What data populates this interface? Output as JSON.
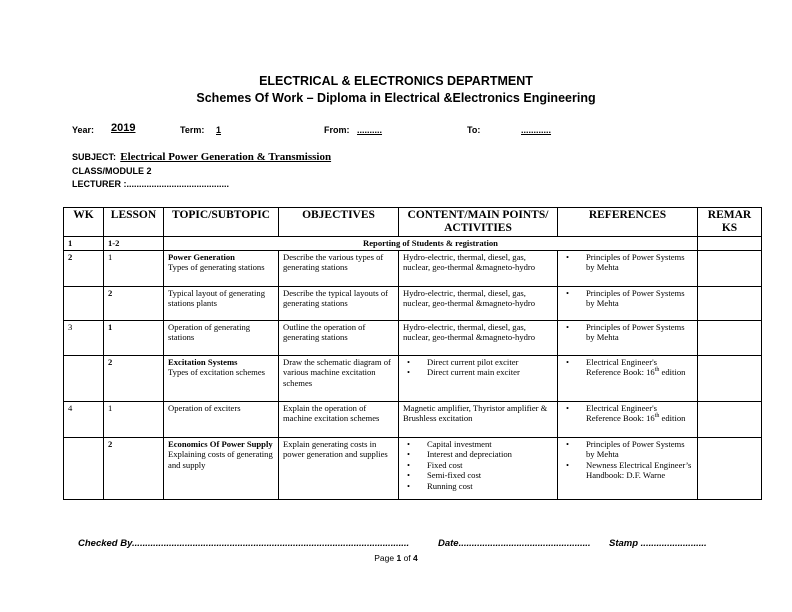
{
  "header": {
    "department": "ELECTRICAL & ELECTRONICS DEPARTMENT",
    "subtitle": "Schemes Of Work – Diploma in Electrical &Electronics Engineering"
  },
  "meta": {
    "year_label": "Year:",
    "year": "2019",
    "term_label": "Term:",
    "term": "1",
    "from_label": "From:",
    "from": "..........",
    "to_label": "To:",
    "to": "............",
    "subject_label": "SUBJECT:",
    "subject": "Electrical Power Generation & Transmission",
    "class": "CLASS/MODULE 2",
    "lecturer": "LECTURER :........................................."
  },
  "table": {
    "headers": [
      "WK",
      "LESSON",
      "TOPIC/SUBTOPIC",
      "OBJECTIVES",
      "CONTENT/MAIN POINTS/ ACTIVITIES",
      "REFERENCES",
      "REMAR KS"
    ],
    "rows": [
      {
        "wk": "1",
        "lesson": "1-2",
        "merged": "Reporting of Students & registration"
      },
      {
        "wk": "2",
        "lesson": "1",
        "topic_bold": "Power Generation",
        "topic": "Types of generating stations",
        "objectives": "Describe the various types of generating stations",
        "content": "Hydro-electric, thermal, diesel, gas, nuclear, geo-thermal &magneto-hydro",
        "references": [
          "Principles of Power Systems by Mehta"
        ]
      },
      {
        "wk": "",
        "lesson": "2",
        "topic": "Typical layout of generating stations plants",
        "objectives": "Describe the typical layouts of generating stations",
        "content": "Hydro-electric, thermal, diesel, gas, nuclear, geo-thermal &magneto-hydro",
        "references": [
          "Principles of Power Systems by Mehta"
        ]
      },
      {
        "wk": "3",
        "lesson": "1",
        "topic": "Operation of generating stations",
        "objectives": "Outline the operation of generating stations",
        "content": "Hydro-electric, thermal, diesel, gas, nuclear, geo-thermal &magneto-hydro",
        "references": [
          "Principles of Power Systems by Mehta"
        ]
      },
      {
        "wk": "",
        "lesson": "2",
        "topic_bold": "Excitation Systems",
        "topic": "Types of excitation schemes",
        "objectives": "Draw the schematic diagram of various machine excitation schemes",
        "content_list": [
          "Direct current pilot exciter",
          "Direct current main exciter"
        ],
        "references": [
          "Electrical Engineer's Reference Book: 16th edition"
        ]
      },
      {
        "wk": "4",
        "lesson": "1",
        "topic": "Operation of exciters",
        "objectives": "Explain the operation of machine excitation schemes",
        "content": "Magnetic amplifier, Thyristor amplifier & Brushless excitation",
        "references": [
          "Electrical Engineer's Reference Book: 16th edition"
        ]
      },
      {
        "wk": "",
        "lesson": "2",
        "topic_bold": "Economics Of Power Supply",
        "topic": "Explaining costs of generating and supply",
        "objectives": "Explain generating  costs in power generation and supplies",
        "content_list": [
          "Capital investment",
          "Interest and depreciation",
          "Fixed cost",
          "Semi-fixed cost",
          "Running cost"
        ],
        "references": [
          "Principles of Power Systems by Mehta",
          "Newness Electrical Engineer’s Handbook: D.F. Warne"
        ]
      }
    ]
  },
  "footer": {
    "checked": "Checked By.........................................................................................................",
    "date": "Date..................................................",
    "stamp": "Stamp .........................",
    "page_prefix": "Page ",
    "page": "1",
    "page_of": " of ",
    "pages": "4"
  }
}
